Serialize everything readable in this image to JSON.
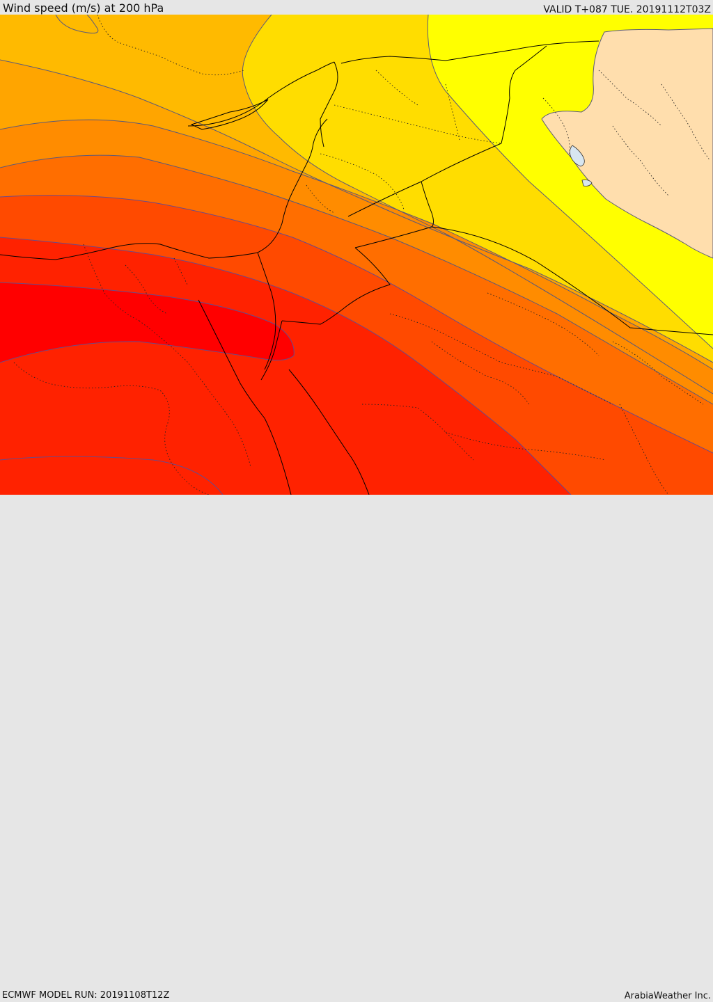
{
  "header": {
    "title": "Wind speed (m/s) at 200 hPa",
    "valid": "VALID T+087 TUE. 20191112T03Z"
  },
  "footer": {
    "model_run": "ECMWF MODEL RUN: 20191108T12Z",
    "credit": "ArabiaWeather Inc."
  },
  "colors": {
    "band_1": "#ff0000",
    "band_2": "#ff2200",
    "band_3": "#ff4a00",
    "band_4": "#ff6e00",
    "band_5": "#ff8c00",
    "band_6": "#ffa500",
    "band_7": "#ffba00",
    "band_8": "#ffdd00",
    "band_9": "#ffff00",
    "land_mask": "#ffdead",
    "lake": "#d8e6f0",
    "contour": "#5a5a7a",
    "border": "#000000"
  }
}
